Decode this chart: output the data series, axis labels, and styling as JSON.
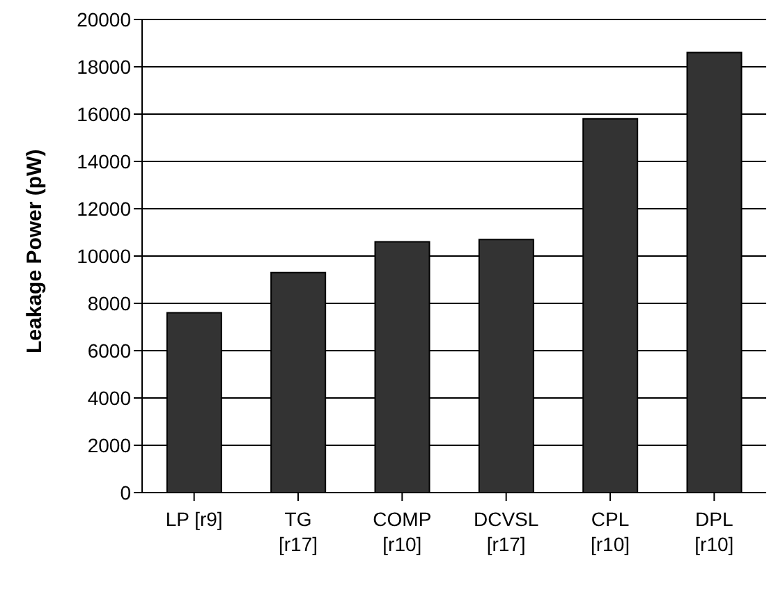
{
  "chart_data": {
    "type": "bar",
    "ylabel": "Leakage Power (pW)",
    "categories": [
      "LP [r9]",
      "TG [r17]",
      "COMP [r10]",
      "DCVSL [r17]",
      "CPL [r10]",
      "DPL [r10]"
    ],
    "values": [
      7600,
      9300,
      10600,
      10700,
      15800,
      18600
    ],
    "color": "#333333",
    "ylim": [
      0,
      20000
    ],
    "yticks": [
      0,
      2000,
      4000,
      6000,
      8000,
      10000,
      12000,
      14000,
      16000,
      18000,
      20000
    ],
    "grid": "y"
  }
}
